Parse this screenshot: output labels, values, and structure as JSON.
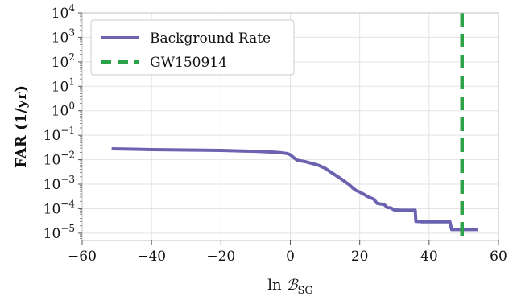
{
  "chart_data": {
    "type": "line",
    "title": "",
    "xlabel": "ln B_SG",
    "ylabel": "FAR (1/yr)",
    "xlim": [
      -60,
      60
    ],
    "ylim_exponent": [
      -5.3,
      4
    ],
    "yscale": "log",
    "grid": true,
    "legend_position": "top-left",
    "x_ticks": [
      -60,
      -40,
      -20,
      0,
      20,
      40,
      60
    ],
    "x_tick_labels": [
      "−60",
      "−40",
      "−20",
      "0",
      "20",
      "40",
      "60"
    ],
    "y_tick_exponents": [
      -5,
      -4,
      -3,
      -2,
      -1,
      0,
      1,
      2,
      3,
      4
    ],
    "y_tick_exponent_labels": [
      "−5",
      "−4",
      "−3",
      "−2",
      "−1",
      "0",
      "1",
      "2",
      "3",
      "4"
    ],
    "y_tick_base": "10",
    "series": [
      {
        "name": "Background Rate",
        "style": "solid",
        "color": "#6b63b0",
        "x": [
          -51.5,
          -45,
          -40,
          -30,
          -20,
          -15,
          -10,
          -5,
          -3,
          -1,
          0,
          1,
          2,
          4,
          6,
          8,
          10,
          12,
          14,
          16,
          17,
          18,
          19,
          20,
          21,
          22,
          23,
          24,
          25,
          26,
          27,
          28,
          29,
          30,
          31,
          32,
          33,
          34,
          35,
          36,
          36.2,
          37,
          38,
          40,
          42,
          44,
          45,
          46,
          46.5,
          48,
          50,
          52,
          54
        ],
        "y": [
          0.028,
          0.027,
          0.026,
          0.025,
          0.024,
          0.023,
          0.022,
          0.0205,
          0.0195,
          0.018,
          0.016,
          0.012,
          0.0095,
          0.0085,
          0.0072,
          0.006,
          0.0045,
          0.0029,
          0.0019,
          0.0012,
          0.00095,
          0.0007,
          0.00055,
          0.00048,
          0.0004,
          0.00033,
          0.00028,
          0.00025,
          0.000165,
          0.000155,
          0.00015,
          0.00011,
          0.000108,
          8.8e-05,
          8.8e-05,
          8.6e-05,
          8.6e-05,
          8.6e-05,
          8.6e-05,
          8.6e-05,
          3e-05,
          3e-05,
          2.9e-05,
          2.9e-05,
          2.9e-05,
          2.9e-05,
          2.9e-05,
          2.9e-05,
          1.4e-05,
          1.4e-05,
          1.4e-05,
          1.4e-05,
          1.4e-05
        ]
      },
      {
        "name": "GW150914",
        "style": "dashed",
        "color": "#2ca348",
        "vertical_line_x": 49.5
      }
    ]
  }
}
